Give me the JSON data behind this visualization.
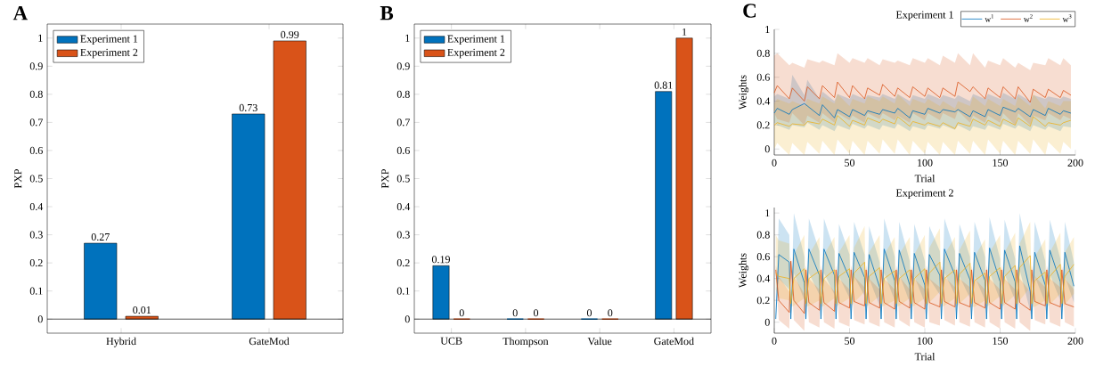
{
  "chart_data": [
    {
      "type": "bar",
      "title": "A",
      "ylabel": "PXP",
      "categories": [
        "Hybrid",
        "GateMod"
      ],
      "series": [
        {
          "name": "Experiment 1",
          "color": "#0072bd",
          "values": [
            0.27,
            0.73
          ]
        },
        {
          "name": "Experiment 2",
          "color": "#d95319",
          "values": [
            0.01,
            0.99
          ]
        }
      ],
      "ylim": [
        -0.05,
        1.05
      ],
      "yticks": [
        0,
        0.1,
        0.2,
        0.3,
        0.4,
        0.5,
        0.6,
        0.7,
        0.8,
        0.9,
        1
      ],
      "data_labels": true,
      "legend": "top left",
      "ref_lines": [
        {
          "axis": "y",
          "value": 0
        }
      ]
    },
    {
      "type": "bar",
      "title": "B",
      "ylabel": "PXP",
      "categories": [
        "UCB",
        "Thompson",
        "Value",
        "GateMod"
      ],
      "series": [
        {
          "name": "Experiment 1",
          "color": "#0072bd",
          "values": [
            0.19,
            0,
            0,
            0.81
          ]
        },
        {
          "name": "Experiment 2",
          "color": "#d95319",
          "values": [
            0,
            0,
            0,
            1
          ]
        }
      ],
      "ylim": [
        -0.05,
        1.05
      ],
      "yticks": [
        0,
        0.1,
        0.2,
        0.3,
        0.4,
        0.5,
        0.6,
        0.7,
        0.8,
        0.9,
        1
      ],
      "data_labels": true,
      "legend": "top left",
      "ref_lines": [
        {
          "axis": "y",
          "value": 0
        }
      ]
    },
    {
      "type": "line",
      "title": "Experiment 1",
      "annotations": [
        "C"
      ],
      "xlabel": "Trial",
      "ylabel": "Weights",
      "legend": "top right",
      "xlim": [
        0,
        200
      ],
      "xticks": [
        0,
        50,
        100,
        150,
        200
      ],
      "ylim": [
        -0.05,
        1
      ],
      "yticks": [
        0,
        0.2,
        0.4,
        0.6,
        0.8,
        1
      ],
      "series": [
        {
          "name": "w$^{1}$",
          "color": "#0072bd",
          "x": [
            0,
            2,
            10,
            12,
            20,
            22,
            30,
            32,
            40,
            42,
            50,
            52,
            60,
            62,
            70,
            72,
            80,
            82,
            90,
            92,
            100,
            102,
            110,
            112,
            120,
            122,
            130,
            132,
            140,
            142,
            150,
            152,
            160,
            162,
            170,
            172,
            180,
            182,
            190,
            192,
            197
          ],
          "values": [
            0.3,
            0.34,
            0.29,
            0.33,
            0.38,
            0.36,
            0.28,
            0.37,
            0.26,
            0.33,
            0.27,
            0.33,
            0.28,
            0.32,
            0.29,
            0.33,
            0.3,
            0.34,
            0.26,
            0.32,
            0.29,
            0.34,
            0.3,
            0.33,
            0.31,
            0.33,
            0.27,
            0.32,
            0.27,
            0.33,
            0.28,
            0.35,
            0.31,
            0.34,
            0.27,
            0.33,
            0.28,
            0.34,
            0.29,
            0.32,
            0.3
          ],
          "lower": [
            0.22,
            0.2,
            0.16,
            0.2,
            0.18,
            0.22,
            0.16,
            0.2,
            0.15,
            0.2,
            0.16,
            0.21,
            0.17,
            0.2,
            0.16,
            0.2,
            0.17,
            0.21,
            0.15,
            0.19,
            0.16,
            0.2,
            0.17,
            0.2,
            0.16,
            0.2,
            0.15,
            0.19,
            0.16,
            0.2,
            0.16,
            0.21,
            0.17,
            0.2,
            0.15,
            0.2,
            0.16,
            0.19,
            0.15,
            0.19,
            0.18
          ],
          "upper": [
            0.44,
            0.46,
            0.42,
            0.62,
            0.45,
            0.58,
            0.42,
            0.48,
            0.4,
            0.46,
            0.42,
            0.46,
            0.42,
            0.45,
            0.43,
            0.46,
            0.42,
            0.46,
            0.4,
            0.45,
            0.42,
            0.46,
            0.42,
            0.45,
            0.42,
            0.45,
            0.4,
            0.46,
            0.42,
            0.46,
            0.42,
            0.47,
            0.42,
            0.46,
            0.4,
            0.45,
            0.42,
            0.44,
            0.42,
            0.44,
            0.42
          ]
        },
        {
          "name": "w$^{2}$",
          "color": "#d95319",
          "x": [
            0,
            2,
            10,
            12,
            20,
            22,
            30,
            32,
            40,
            42,
            50,
            52,
            60,
            62,
            70,
            72,
            80,
            82,
            90,
            92,
            100,
            102,
            110,
            112,
            120,
            122,
            130,
            132,
            140,
            142,
            150,
            152,
            160,
            162,
            170,
            172,
            180,
            182,
            190,
            192,
            197
          ],
          "values": [
            0.47,
            0.53,
            0.42,
            0.51,
            0.4,
            0.52,
            0.42,
            0.53,
            0.43,
            0.56,
            0.43,
            0.53,
            0.42,
            0.51,
            0.45,
            0.54,
            0.44,
            0.51,
            0.43,
            0.52,
            0.44,
            0.51,
            0.43,
            0.51,
            0.44,
            0.56,
            0.48,
            0.52,
            0.42,
            0.51,
            0.43,
            0.52,
            0.42,
            0.52,
            0.39,
            0.5,
            0.43,
            0.5,
            0.43,
            0.49,
            0.45
          ],
          "lower": [
            0.3,
            0.25,
            0.22,
            0.3,
            0.2,
            0.28,
            0.22,
            0.3,
            0.22,
            0.3,
            0.24,
            0.28,
            0.22,
            0.3,
            0.25,
            0.3,
            0.24,
            0.28,
            0.22,
            0.3,
            0.24,
            0.3,
            0.24,
            0.3,
            0.25,
            0.32,
            0.22,
            0.28,
            0.22,
            0.28,
            0.22,
            0.3,
            0.2,
            0.3,
            0.2,
            0.28,
            0.24,
            0.3,
            0.24,
            0.28,
            0.25
          ],
          "upper": [
            0.78,
            0.8,
            0.7,
            0.72,
            0.68,
            0.75,
            0.72,
            0.74,
            0.7,
            0.8,
            0.72,
            0.76,
            0.72,
            0.76,
            0.7,
            0.75,
            0.72,
            0.74,
            0.7,
            0.76,
            0.72,
            0.76,
            0.7,
            0.78,
            0.72,
            0.8,
            0.7,
            0.8,
            0.68,
            0.74,
            0.7,
            0.76,
            0.68,
            0.72,
            0.66,
            0.72,
            0.7,
            0.76,
            0.7,
            0.76,
            0.7
          ]
        },
        {
          "name": "w$^{3}$",
          "color": "#edb120",
          "x": [
            0,
            2,
            10,
            12,
            20,
            22,
            30,
            32,
            40,
            42,
            50,
            52,
            60,
            62,
            70,
            72,
            80,
            82,
            90,
            92,
            100,
            102,
            110,
            112,
            120,
            122,
            130,
            132,
            140,
            142,
            150,
            152,
            160,
            162,
            170,
            172,
            180,
            182,
            190,
            192,
            197
          ],
          "values": [
            0.2,
            0.22,
            0.19,
            0.21,
            0.2,
            0.23,
            0.21,
            0.25,
            0.2,
            0.28,
            0.19,
            0.24,
            0.2,
            0.26,
            0.22,
            0.25,
            0.21,
            0.27,
            0.19,
            0.23,
            0.2,
            0.22,
            0.19,
            0.22,
            0.17,
            0.22,
            0.19,
            0.25,
            0.2,
            0.24,
            0.19,
            0.25,
            0.2,
            0.26,
            0.19,
            0.27,
            0.19,
            0.22,
            0.2,
            0.22,
            0.24
          ],
          "lower": [
            0.0,
            0.05,
            -0.05,
            0.05,
            -0.05,
            0.06,
            -0.04,
            0.07,
            -0.05,
            0.08,
            -0.04,
            0.07,
            -0.05,
            0.07,
            -0.04,
            0.08,
            -0.04,
            0.08,
            -0.05,
            0.07,
            -0.04,
            0.06,
            -0.05,
            0.06,
            -0.05,
            0.07,
            -0.04,
            0.07,
            -0.05,
            0.08,
            -0.04,
            0.07,
            -0.05,
            0.07,
            -0.04,
            0.08,
            -0.05,
            0.06,
            -0.04,
            0.06,
            0.0
          ],
          "upper": [
            0.38,
            0.42,
            0.38,
            0.4,
            0.36,
            0.42,
            0.38,
            0.44,
            0.38,
            0.46,
            0.36,
            0.42,
            0.38,
            0.44,
            0.4,
            0.44,
            0.38,
            0.46,
            0.36,
            0.42,
            0.38,
            0.42,
            0.36,
            0.4,
            0.34,
            0.4,
            0.36,
            0.44,
            0.36,
            0.42,
            0.36,
            0.42,
            0.36,
            0.44,
            0.36,
            0.46,
            0.34,
            0.4,
            0.36,
            0.4,
            0.4
          ]
        }
      ]
    },
    {
      "type": "line",
      "title": "Experiment 2",
      "xlabel": "Trial",
      "ylabel": "Weights",
      "xlim": [
        0,
        200
      ],
      "xticks": [
        0,
        50,
        100,
        150,
        200
      ],
      "ylim": [
        -0.1,
        1.05
      ],
      "yticks": [
        0,
        0.2,
        0.4,
        0.6,
        0.8,
        1
      ],
      "series": [
        {
          "color": "#0072bd",
          "x": [
            1,
            3,
            10,
            11,
            13,
            20,
            21,
            23,
            30,
            31,
            33,
            40,
            41,
            43,
            50,
            51,
            53,
            60,
            61,
            63,
            70,
            71,
            73,
            80,
            81,
            83,
            90,
            91,
            93,
            100,
            101,
            103,
            110,
            111,
            113,
            120,
            121,
            123,
            130,
            131,
            133,
            140,
            141,
            143,
            150,
            151,
            153,
            160,
            161,
            163,
            170,
            171,
            173,
            180,
            181,
            183,
            190,
            191,
            193,
            199
          ],
          "values": [
            0.03,
            0.62,
            0.55,
            0.03,
            0.67,
            0.36,
            0.03,
            0.67,
            0.43,
            0.03,
            0.67,
            0.43,
            0.03,
            0.63,
            0.4,
            0.03,
            0.64,
            0.41,
            0.03,
            0.62,
            0.32,
            0.03,
            0.67,
            0.38,
            0.03,
            0.66,
            0.34,
            0.03,
            0.63,
            0.34,
            0.03,
            0.62,
            0.43,
            0.03,
            0.67,
            0.43,
            0.03,
            0.63,
            0.39,
            0.03,
            0.64,
            0.38,
            0.03,
            0.68,
            0.37,
            0.03,
            0.66,
            0.37,
            0.03,
            0.7,
            0.28,
            0.03,
            0.64,
            0.34,
            0.03,
            0.66,
            0.37,
            0.03,
            0.64,
            0.33
          ],
          "lower": [
            0.02,
            0.4,
            0.3,
            0.02,
            0.45,
            0.2,
            0.02,
            0.45,
            0.25,
            0.02,
            0.45,
            0.25,
            0.02,
            0.42,
            0.22,
            0.02,
            0.42,
            0.24,
            0.02,
            0.4,
            0.15,
            0.02,
            0.45,
            0.2,
            0.02,
            0.44,
            0.18,
            0.02,
            0.42,
            0.18,
            0.02,
            0.4,
            0.25,
            0.02,
            0.45,
            0.25,
            0.02,
            0.42,
            0.22,
            0.02,
            0.42,
            0.2,
            0.02,
            0.46,
            0.2,
            0.02,
            0.44,
            0.2,
            0.02,
            0.48,
            0.1,
            0.02,
            0.42,
            0.18,
            0.02,
            0.44,
            0.2,
            0.02,
            0.42,
            0.18
          ],
          "upper": [
            0.05,
            0.95,
            0.8,
            0.05,
            1.0,
            0.6,
            0.05,
            0.95,
            0.65,
            0.05,
            0.95,
            0.65,
            0.05,
            0.9,
            0.62,
            0.05,
            0.92,
            0.62,
            0.05,
            0.88,
            0.55,
            0.05,
            0.95,
            0.6,
            0.05,
            0.92,
            0.56,
            0.05,
            0.9,
            0.56,
            0.05,
            0.88,
            0.65,
            0.05,
            0.95,
            0.65,
            0.05,
            0.9,
            0.6,
            0.05,
            0.92,
            0.6,
            0.05,
            0.96,
            0.58,
            0.05,
            0.94,
            0.58,
            0.05,
            1.0,
            0.5,
            0.05,
            0.92,
            0.56,
            0.05,
            0.94,
            0.58,
            0.05,
            0.92,
            0.55
          ]
        },
        {
          "color": "#d95319",
          "x": [
            1,
            3,
            10,
            11,
            13,
            20,
            21,
            23,
            30,
            31,
            33,
            40,
            41,
            43,
            50,
            51,
            53,
            60,
            61,
            63,
            70,
            71,
            73,
            80,
            81,
            83,
            90,
            91,
            93,
            100,
            101,
            103,
            110,
            111,
            113,
            120,
            121,
            123,
            130,
            131,
            133,
            140,
            141,
            143,
            150,
            151,
            153,
            160,
            161,
            163,
            170,
            171,
            173,
            180,
            181,
            183,
            190,
            191,
            193,
            199
          ],
          "values": [
            0.48,
            0.2,
            0.09,
            0.56,
            0.2,
            0.08,
            0.48,
            0.18,
            0.11,
            0.48,
            0.18,
            0.1,
            0.48,
            0.18,
            0.13,
            0.48,
            0.19,
            0.15,
            0.48,
            0.18,
            0.13,
            0.48,
            0.18,
            0.12,
            0.48,
            0.19,
            0.13,
            0.48,
            0.18,
            0.12,
            0.48,
            0.18,
            0.14,
            0.48,
            0.19,
            0.14,
            0.48,
            0.18,
            0.14,
            0.48,
            0.18,
            0.13,
            0.48,
            0.18,
            0.12,
            0.48,
            0.18,
            0.12,
            0.48,
            0.18,
            0.11,
            0.48,
            0.19,
            0.15,
            0.48,
            0.18,
            0.14,
            0.48,
            0.17,
            0.14
          ],
          "lower": [
            0.44,
            0.02,
            -0.06,
            0.5,
            0.02,
            -0.08,
            0.44,
            0.0,
            -0.05,
            0.44,
            0.0,
            -0.06,
            0.44,
            0.0,
            -0.04,
            0.44,
            0.02,
            -0.02,
            0.44,
            0.0,
            -0.04,
            0.44,
            0.0,
            -0.05,
            0.44,
            0.02,
            -0.04,
            0.44,
            0.0,
            -0.05,
            0.44,
            0.0,
            -0.03,
            0.44,
            0.02,
            -0.03,
            0.44,
            0.0,
            -0.04,
            0.44,
            0.0,
            -0.05,
            0.44,
            0.0,
            -0.06,
            0.44,
            0.0,
            -0.06,
            0.44,
            0.0,
            -0.08,
            0.44,
            0.02,
            -0.02,
            0.44,
            0.0,
            -0.04,
            0.44,
            0.0,
            -0.04
          ],
          "upper": [
            0.52,
            0.42,
            0.28,
            0.6,
            0.42,
            0.26,
            0.52,
            0.4,
            0.3,
            0.52,
            0.4,
            0.28,
            0.52,
            0.4,
            0.3,
            0.52,
            0.42,
            0.32,
            0.52,
            0.4,
            0.3,
            0.52,
            0.4,
            0.3,
            0.52,
            0.42,
            0.3,
            0.52,
            0.4,
            0.3,
            0.52,
            0.4,
            0.32,
            0.52,
            0.42,
            0.32,
            0.52,
            0.4,
            0.32,
            0.52,
            0.4,
            0.3,
            0.52,
            0.4,
            0.3,
            0.52,
            0.4,
            0.3,
            0.52,
            0.4,
            0.28,
            0.52,
            0.42,
            0.32,
            0.52,
            0.4,
            0.32,
            0.52,
            0.4,
            0.3
          ]
        },
        {
          "color": "#edb120",
          "x": [
            1,
            3,
            10,
            11,
            13,
            20,
            21,
            23,
            30,
            31,
            33,
            40,
            41,
            43,
            50,
            51,
            53,
            60,
            61,
            63,
            70,
            71,
            73,
            80,
            81,
            83,
            90,
            91,
            93,
            100,
            101,
            103,
            110,
            111,
            113,
            120,
            121,
            123,
            130,
            131,
            133,
            140,
            141,
            143,
            150,
            151,
            153,
            160,
            161,
            163,
            170,
            171,
            173,
            180,
            181,
            183,
            190,
            191,
            193,
            199
          ],
          "values": [
            0.45,
            0.42,
            0.4,
            0.17,
            0.4,
            0.49,
            0.17,
            0.4,
            0.47,
            0.17,
            0.4,
            0.48,
            0.17,
            0.42,
            0.49,
            0.17,
            0.45,
            0.55,
            0.17,
            0.42,
            0.5,
            0.17,
            0.4,
            0.47,
            0.17,
            0.4,
            0.48,
            0.17,
            0.4,
            0.49,
            0.17,
            0.45,
            0.55,
            0.17,
            0.4,
            0.48,
            0.17,
            0.44,
            0.54,
            0.17,
            0.38,
            0.45,
            0.17,
            0.42,
            0.5,
            0.17,
            0.42,
            0.52,
            0.17,
            0.5,
            0.61,
            0.17,
            0.38,
            0.46,
            0.17,
            0.42,
            0.53,
            0.17,
            0.42,
            0.53
          ],
          "lower": [
            0.3,
            0.22,
            0.2,
            0.14,
            0.15,
            0.22,
            0.14,
            0.15,
            0.2,
            0.14,
            0.15,
            0.22,
            0.14,
            0.16,
            0.22,
            0.14,
            0.18,
            0.28,
            0.14,
            0.16,
            0.24,
            0.14,
            0.15,
            0.2,
            0.14,
            0.15,
            0.22,
            0.14,
            0.15,
            0.22,
            0.14,
            0.18,
            0.28,
            0.14,
            0.15,
            0.22,
            0.14,
            0.17,
            0.26,
            0.14,
            0.14,
            0.2,
            0.14,
            0.16,
            0.24,
            0.14,
            0.16,
            0.25,
            0.14,
            0.2,
            0.32,
            0.14,
            0.14,
            0.2,
            0.14,
            0.16,
            0.26,
            0.14,
            0.16,
            0.26
          ],
          "upper": [
            0.8,
            0.75,
            0.72,
            0.2,
            0.62,
            0.8,
            0.2,
            0.62,
            0.78,
            0.2,
            0.62,
            0.78,
            0.2,
            0.64,
            0.8,
            0.2,
            0.68,
            0.88,
            0.2,
            0.64,
            0.8,
            0.2,
            0.62,
            0.78,
            0.2,
            0.62,
            0.78,
            0.2,
            0.62,
            0.8,
            0.2,
            0.68,
            0.86,
            0.2,
            0.62,
            0.78,
            0.2,
            0.66,
            0.84,
            0.2,
            0.6,
            0.76,
            0.2,
            0.64,
            0.8,
            0.2,
            0.64,
            0.82,
            0.2,
            0.72,
            0.92,
            0.2,
            0.6,
            0.76,
            0.2,
            0.64,
            0.82,
            0.2,
            0.64,
            0.78
          ]
        }
      ]
    }
  ]
}
